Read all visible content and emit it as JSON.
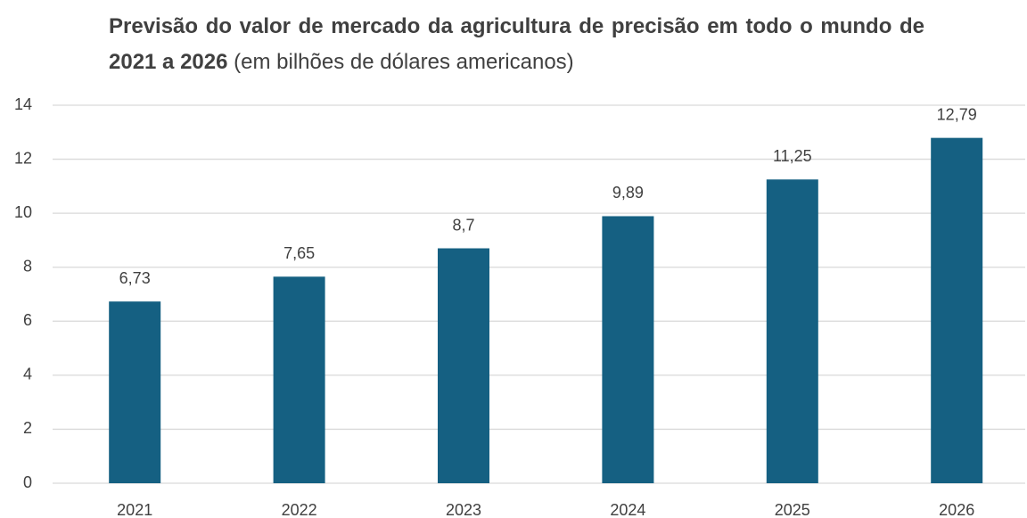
{
  "chart_data": {
    "type": "bar",
    "title": "Previsão do valor de mercado da agricultura de precisão em todo o mundo de 2021 a 2026",
    "subtitle": "(em bilhões de dólares americanos)",
    "categories": [
      "2021",
      "2022",
      "2023",
      "2024",
      "2025",
      "2026"
    ],
    "values": [
      6.73,
      7.65,
      8.7,
      9.89,
      11.25,
      12.79
    ],
    "value_labels": [
      "6,73",
      "7,65",
      "8,7",
      "9,89",
      "11,25",
      "12,79"
    ],
    "color": "#156082",
    "ylim": [
      0,
      14
    ],
    "yticks": [
      0,
      2,
      4,
      6,
      8,
      10,
      12,
      14
    ],
    "grid": true
  }
}
